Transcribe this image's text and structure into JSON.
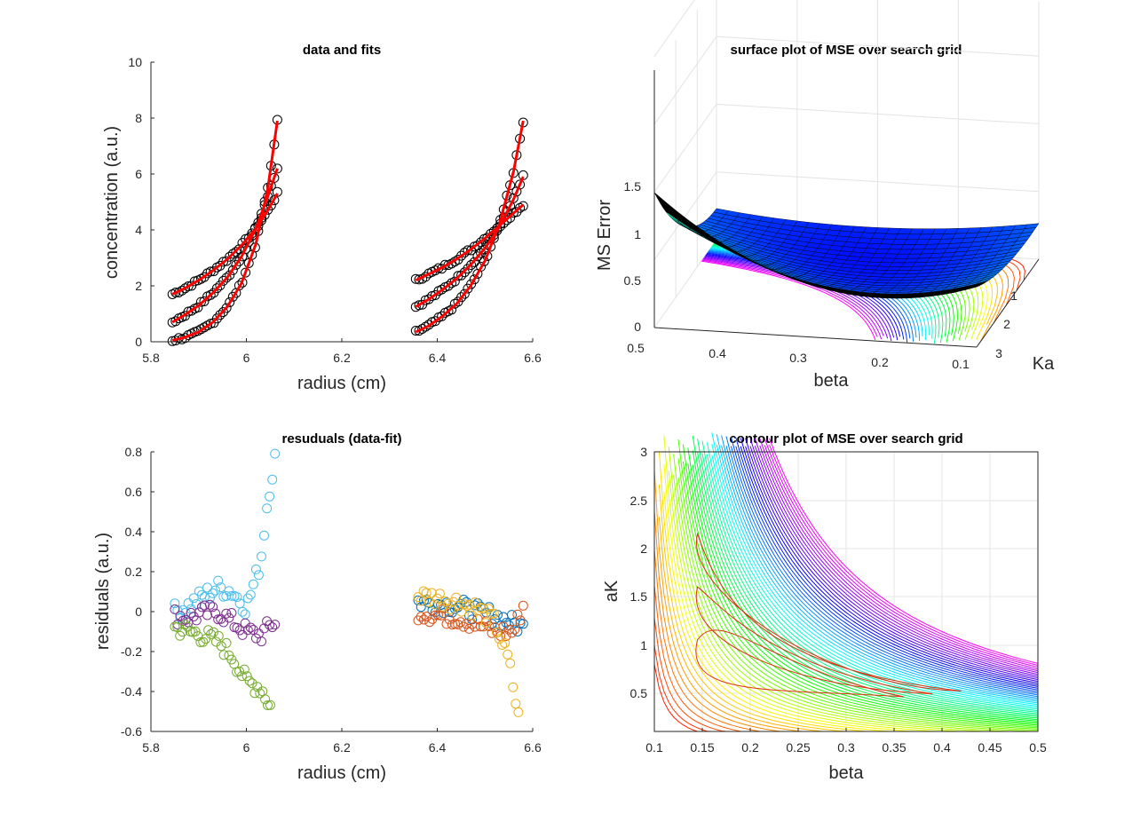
{
  "figure": {
    "background": "#ffffff"
  },
  "chart_data": [
    {
      "type": "scatter",
      "title": "data and fits",
      "xlabel": "radius (cm)",
      "ylabel": "concentration (a.u.)",
      "xlim": [
        5.8,
        6.6
      ],
      "ylim": [
        0,
        10
      ],
      "xticks": [
        "5.8",
        "6",
        "6.2",
        "6.4",
        "6.6"
      ],
      "yticks": [
        "0",
        "2",
        "4",
        "6",
        "8",
        "10"
      ],
      "marker_color": "#000000",
      "fit_color": "#ff0000",
      "series": [
        {
          "x": [
            5.845,
            5.87,
            5.9,
            5.93,
            5.96,
            5.99,
            6.02,
            6.045,
            6.065
          ],
          "y": [
            1.7,
            1.9,
            2.2,
            2.55,
            2.95,
            3.45,
            4.05,
            4.7,
            5.3
          ]
        },
        {
          "x": [
            5.845,
            5.87,
            5.9,
            5.93,
            5.96,
            5.99,
            6.02,
            6.045,
            6.065
          ],
          "y": [
            0.7,
            0.95,
            1.3,
            1.75,
            2.3,
            3.05,
            4.05,
            5.2,
            6.2
          ]
        },
        {
          "x": [
            5.845,
            5.87,
            5.9,
            5.93,
            5.96,
            5.99,
            6.02,
            6.045,
            6.065
          ],
          "y": [
            0.05,
            0.15,
            0.35,
            0.7,
            1.25,
            2.1,
            3.5,
            5.5,
            7.9
          ]
        },
        {
          "x": [
            6.355,
            6.38,
            6.41,
            6.44,
            6.47,
            6.5,
            6.53,
            6.56,
            6.58
          ],
          "y": [
            2.2,
            2.4,
            2.65,
            2.95,
            3.3,
            3.7,
            4.15,
            4.6,
            4.9
          ]
        },
        {
          "x": [
            6.355,
            6.38,
            6.41,
            6.44,
            6.47,
            6.5,
            6.53,
            6.56,
            6.58
          ],
          "y": [
            1.25,
            1.5,
            1.85,
            2.25,
            2.75,
            3.35,
            4.1,
            5.1,
            5.9
          ]
        },
        {
          "x": [
            6.355,
            6.38,
            6.41,
            6.44,
            6.47,
            6.5,
            6.53,
            6.56,
            6.58
          ],
          "y": [
            0.35,
            0.55,
            0.9,
            1.35,
            2.0,
            2.9,
            4.2,
            6.1,
            7.9
          ]
        }
      ]
    },
    {
      "type": "surface",
      "title": "surface plot of MSE over search grid",
      "xlabel": "beta",
      "ylabel": "Ka",
      "zlabel": "MS Error",
      "xticks": [
        "0.5",
        "0.4",
        "0.3",
        "0.2",
        "0.1"
      ],
      "yticks": [
        "1",
        "2",
        "3"
      ],
      "zticks": [
        "0",
        "0.5",
        "1",
        "1.5"
      ],
      "xlim": [
        0.1,
        0.5
      ],
      "ylim": [
        0.1,
        3
      ],
      "zlim": [
        0,
        1.9
      ],
      "colormap": "hsv"
    },
    {
      "type": "scatter",
      "title": "resuduals (data-fit)",
      "xlabel": "radius (cm)",
      "ylabel": "residuals (a.u.)",
      "xlim": [
        5.8,
        6.6
      ],
      "ylim": [
        -0.6,
        0.8
      ],
      "xticks": [
        "5.8",
        "6",
        "6.2",
        "6.4",
        "6.6"
      ],
      "yticks": [
        "-0.6",
        "-0.4",
        "-0.2",
        "0",
        "0.2",
        "0.4",
        "0.6",
        "0.8"
      ],
      "series": [
        {
          "color": "#4dbeee",
          "x": [
            5.85,
            5.88,
            5.91,
            5.94,
            5.97,
            6.0,
            6.03,
            6.045,
            6.06
          ],
          "y": [
            0.0,
            0.03,
            0.08,
            0.12,
            0.1,
            0.02,
            0.25,
            0.57,
            0.77
          ]
        },
        {
          "color": "#7e2f8e",
          "x": [
            5.85,
            5.88,
            5.91,
            5.94,
            5.97,
            6.0,
            6.03,
            6.06
          ],
          "y": [
            -0.02,
            -0.03,
            -0.01,
            0.0,
            -0.05,
            -0.1,
            -0.12,
            -0.05
          ]
        },
        {
          "color": "#77ac30",
          "x": [
            5.85,
            5.88,
            5.91,
            5.94,
            5.97,
            6.0,
            6.03,
            6.05
          ],
          "y": [
            -0.08,
            -0.1,
            -0.12,
            -0.15,
            -0.22,
            -0.35,
            -0.38,
            -0.47
          ]
        },
        {
          "color": "#0072bd",
          "x": [
            6.36,
            6.4,
            6.44,
            6.48,
            6.52,
            6.56,
            6.58
          ],
          "y": [
            0.05,
            0.04,
            0.03,
            0.0,
            -0.02,
            -0.06,
            -0.08
          ]
        },
        {
          "color": "#d95319",
          "x": [
            6.36,
            6.4,
            6.44,
            6.48,
            6.52,
            6.56,
            6.58
          ],
          "y": [
            0.0,
            -0.02,
            -0.03,
            -0.06,
            -0.1,
            -0.1,
            0.03
          ]
        },
        {
          "color": "#edb120",
          "x": [
            6.36,
            6.4,
            6.44,
            6.48,
            6.52,
            6.55,
            6.57
          ],
          "y": [
            0.08,
            0.07,
            0.05,
            0.02,
            -0.05,
            -0.25,
            -0.53
          ]
        }
      ]
    },
    {
      "type": "contour",
      "title": "contour plot of MSE over search grid",
      "xlabel": "beta",
      "ylabel": "aK",
      "xlim": [
        0.1,
        0.5
      ],
      "ylim": [
        0.1,
        3
      ],
      "xticks": [
        "0.1",
        "0.15",
        "0.2",
        "0.25",
        "0.3",
        "0.35",
        "0.4",
        "0.45",
        "0.5"
      ],
      "yticks": [
        "0.5",
        "1",
        "1.5",
        "2",
        "2.5",
        "3"
      ],
      "grid": true,
      "colormap": "hsv",
      "minimum": {
        "beta": 0.2,
        "aK": 1.0
      }
    }
  ]
}
